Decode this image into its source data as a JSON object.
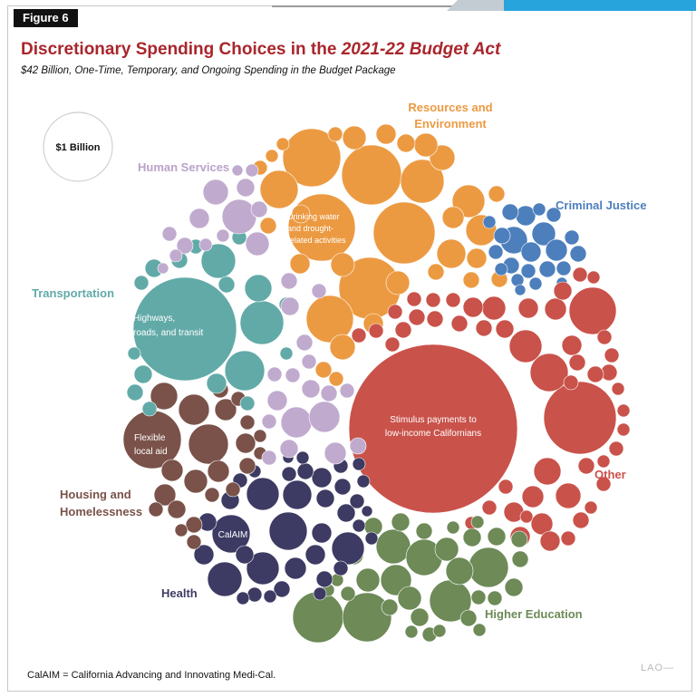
{
  "figure_label": "Figure 6",
  "footnote": "CalAIM = California Advancing and Innovating Medi-Cal.",
  "credit": "LAO—",
  "chart_data": {
    "type": "bubble",
    "title_prefix": "Discretionary Spending Choices in the ",
    "title_emphasis": "2021-22 Budget Act",
    "subtitle": "$42 Billion, One-Time, Temporary, and Ongoing Spending in the Budget Package",
    "reference_bubble": {
      "label": "$1 Billion",
      "value_billions": 1
    },
    "colors": {
      "resources": "#ec9a42",
      "criminal": "#4d7fbd",
      "other": "#c9524a",
      "higher_ed": "#6d8a57",
      "health": "#3d3b63",
      "housing": "#7a5249",
      "transportation": "#62aaa8",
      "human_services": "#c0abcf"
    },
    "groups": {
      "resources": "Resources and",
      "resources_2": "Environment",
      "criminal": "Criminal Justice",
      "other": "Other",
      "higher_ed": "Higher Education",
      "health": "Health",
      "housing": "Housing and",
      "housing_2": "Homelessness",
      "transportation": "Transportation",
      "human_services": "Human Services"
    },
    "labeled_items": {
      "stimulus_1": "Stimulus payments to",
      "stimulus_2": "low-income Californians",
      "highways_1": "Highways,",
      "highways_2": "roads, and transit",
      "drinking_1": "Drinking water",
      "drinking_2": "and drought-",
      "drinking_3": "related activities",
      "flexible_1": "Flexible",
      "flexible_2": "local aid",
      "calaim": "CalAIM"
    },
    "labeled_item_values_billions": {
      "stimulus": 8.1,
      "highways": 3.2,
      "drinking_water": 1.3,
      "flexible_local_aid": 1.0,
      "calaim": 0.5
    }
  }
}
